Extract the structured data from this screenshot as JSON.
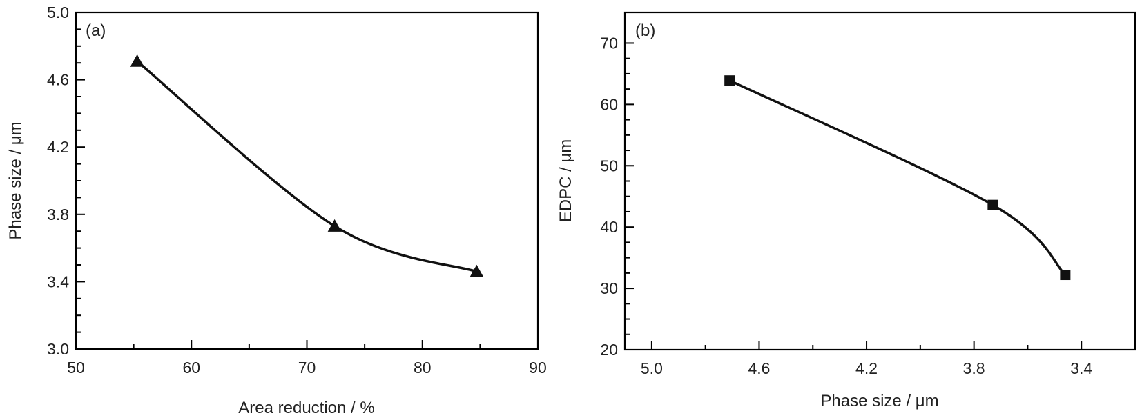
{
  "chart_data": [
    {
      "type": "line",
      "panel_label": "(a)",
      "title": "",
      "xlabel": "Area reduction / %",
      "ylabel": "Phase size / μm",
      "xlim": [
        50,
        90
      ],
      "ylim": [
        3.0,
        5.0
      ],
      "xticks": [
        50,
        60,
        70,
        80,
        90
      ],
      "xtick_labels": [
        "50",
        "60",
        "70",
        "80",
        "90"
      ],
      "yticks": [
        3.0,
        3.4,
        3.8,
        4.2,
        4.6,
        5.0
      ],
      "ytick_labels": [
        "3.0",
        "3.4",
        "3.8",
        "4.2",
        "4.6",
        "5.0"
      ],
      "x_reversed": false,
      "marker": "triangle",
      "grid": false,
      "x": [
        55.3,
        72.4,
        84.7
      ],
      "y": [
        4.71,
        3.73,
        3.46
      ]
    },
    {
      "type": "line",
      "panel_label": "(b)",
      "title": "",
      "xlabel": "Phase size / μm",
      "ylabel": "EDPC / μm",
      "xlim": [
        5.1,
        3.2
      ],
      "ylim": [
        20,
        75
      ],
      "xticks": [
        5.0,
        4.6,
        4.2,
        3.8,
        3.4
      ],
      "xtick_labels": [
        "5.0",
        "4.6",
        "4.2",
        "3.8",
        "3.4"
      ],
      "yticks": [
        20,
        30,
        40,
        50,
        60,
        70
      ],
      "ytick_labels": [
        "20",
        "30",
        "40",
        "50",
        "60",
        "70"
      ],
      "x_reversed": true,
      "marker": "square",
      "grid": false,
      "x": [
        4.71,
        3.73,
        3.46
      ],
      "y": [
        63.9,
        43.6,
        32.2
      ]
    }
  ]
}
